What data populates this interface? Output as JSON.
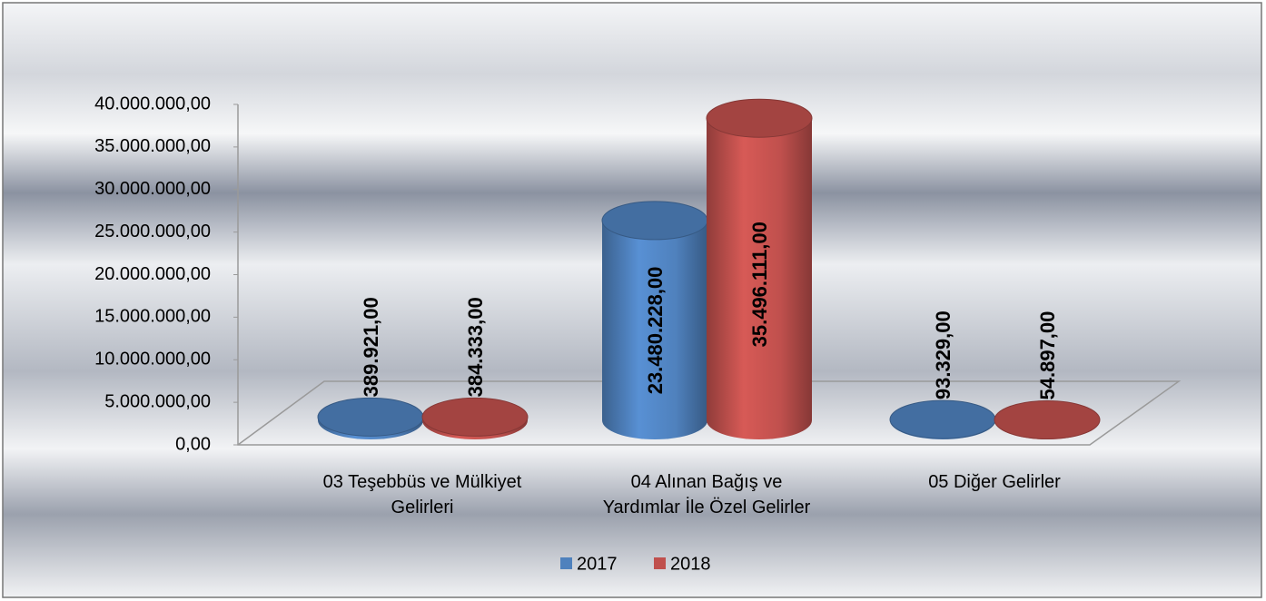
{
  "chart_data": {
    "type": "bar",
    "categories": [
      "03 Teşebbüs ve Mülkiyet Gelirleri",
      "04 Alınan Bağış ve Yardımlar İle Özel Gelirler",
      "05 Diğer Gelirler"
    ],
    "series": [
      {
        "name": "2017",
        "color": "#4f81bd",
        "values": [
          389921,
          23480228,
          93329
        ],
        "value_labels": [
          "389.921,00",
          "23.480.228,00",
          "93.329,00"
        ]
      },
      {
        "name": "2018",
        "color": "#c0504d",
        "values": [
          384333,
          35496111,
          54897
        ],
        "value_labels": [
          "384.333,00",
          "35.496.111,00",
          "54.897,00"
        ]
      }
    ],
    "ylim": [
      0,
      40000000
    ],
    "yticks": [
      {
        "value": 0,
        "label": "0,00"
      },
      {
        "value": 5000000,
        "label": "5.000.000,00"
      },
      {
        "value": 10000000,
        "label": "10.000.000,00"
      },
      {
        "value": 15000000,
        "label": "15.000.000,00"
      },
      {
        "value": 20000000,
        "label": "20.000.000,00"
      },
      {
        "value": 25000000,
        "label": "25.000.000,00"
      },
      {
        "value": 30000000,
        "label": "30.000.000,00"
      },
      {
        "value": 35000000,
        "label": "35.000.000,00"
      },
      {
        "value": 40000000,
        "label": "40.000.000,00"
      }
    ],
    "legend": "bottom"
  }
}
